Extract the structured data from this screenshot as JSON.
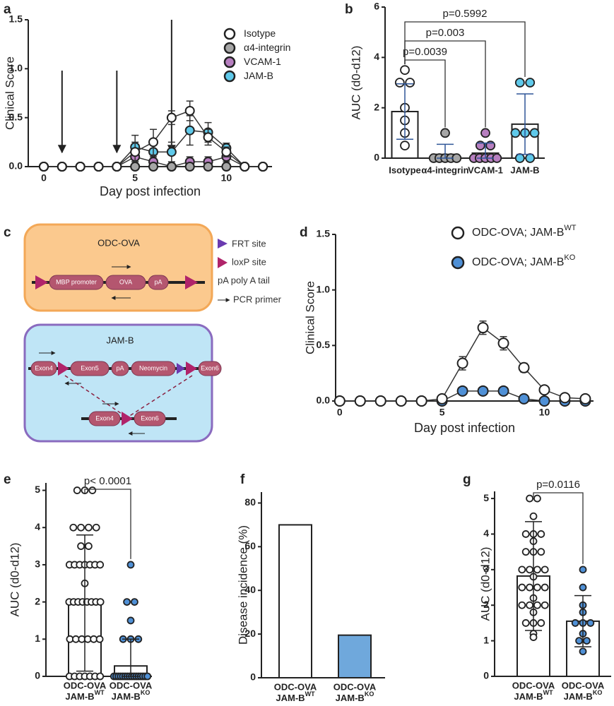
{
  "chart_data": [
    {
      "panel_label": "a",
      "type": "line",
      "ylabel": "Clinical Score",
      "xlabel": "Day post infection",
      "x": [
        0,
        1,
        2,
        3,
        4,
        5,
        6,
        7,
        8,
        9,
        10,
        11,
        12
      ],
      "xlim": [
        -0.85,
        12.5
      ],
      "xticks": [
        0,
        5,
        10
      ],
      "ylim": [
        0,
        1.5
      ],
      "yticks": [
        {
          "value": 0,
          "label": "0.0"
        },
        0.5,
        {
          "value": 1,
          "label": "1.0"
        },
        1.5
      ],
      "legend": "upper right",
      "treatment_days": [
        1,
        4,
        7
      ],
      "series": [
        {
          "name": "Isotype",
          "color": "#ffffff",
          "values": [
            0,
            0,
            0,
            0,
            0,
            0.15,
            0.25,
            0.5,
            0.57,
            0.3,
            0.15,
            0,
            0
          ],
          "errors": [
            0,
            0,
            0,
            0,
            0,
            0.1,
            0.13,
            0.07,
            0.1,
            0.08,
            0.05,
            0,
            0
          ]
        },
        {
          "name": "α4-integrin",
          "color": "#a6a6a6",
          "values": [
            0,
            0,
            0,
            0,
            0,
            0,
            0,
            0,
            0,
            0,
            0,
            0,
            0
          ],
          "errors": [
            0,
            0,
            0,
            0,
            0,
            0,
            0,
            0,
            0,
            0,
            0,
            0,
            0
          ]
        },
        {
          "name": "VCAM-1",
          "color": "#b77fc0",
          "values": [
            0,
            0,
            0,
            0,
            0,
            0.1,
            0.05,
            0,
            0.05,
            0.05,
            0.1,
            0,
            0
          ],
          "errors": [
            0,
            0,
            0,
            0,
            0,
            0.05,
            0.05,
            0,
            0.05,
            0.05,
            0.05,
            0,
            0
          ]
        },
        {
          "name": "JAM-B",
          "color": "#5fc9ea",
          "values": [
            0,
            0,
            0,
            0,
            0,
            0.2,
            0.15,
            0.15,
            0.37,
            0.35,
            0.19,
            0,
            0
          ],
          "errors": [
            0,
            0,
            0,
            0,
            0,
            0.12,
            0.1,
            0.1,
            0.15,
            0.1,
            0.05,
            0,
            0
          ]
        }
      ]
    },
    {
      "panel_label": "b",
      "type": "bar",
      "ylabel": "AUC (d0-d12)",
      "categories": [
        "Isotype",
        "α4-integrin",
        "VCAM-1",
        "JAM-B"
      ],
      "values": [
        1.85,
        0.15,
        0.2,
        1.35
      ],
      "errors": [
        1.1,
        0.4,
        0.4,
        1.2
      ],
      "error_color": "#2e5597",
      "bar_colors": [
        "#ffffff",
        "#ffffff",
        "#ffffff",
        "#ffffff"
      ],
      "point_colors": [
        "#ffffff",
        "#a6a6a6",
        "#b77fc0",
        "#5fc9ea"
      ],
      "points": [
        [
          3.5,
          3,
          3,
          2,
          1.5,
          1,
          0.5
        ],
        [
          1,
          0,
          0,
          0,
          0,
          0
        ],
        [
          1,
          0.5,
          0.5,
          0,
          0,
          0,
          0,
          0
        ],
        [
          3,
          3,
          1,
          1,
          1,
          0,
          0
        ]
      ],
      "ylim": [
        0,
        6
      ],
      "yticks": [
        0,
        2,
        4,
        6
      ],
      "comparisons": [
        {
          "from": 0,
          "to": 1,
          "label": "p=0.0039"
        },
        {
          "from": 0,
          "to": 2,
          "label": "p=0.003"
        },
        {
          "from": 0,
          "to": 3,
          "label": "p=0.5992"
        }
      ]
    },
    {
      "panel_label": "d",
      "type": "line",
      "ylabel": "Clinical Score",
      "xlabel": "Day post infection",
      "x": [
        0,
        1,
        2,
        3,
        4,
        5,
        6,
        7,
        8,
        9,
        10,
        11,
        12
      ],
      "xlim": [
        -0.2,
        12.4
      ],
      "xticks": [
        0,
        5,
        10
      ],
      "ylim": [
        0,
        1.5
      ],
      "yticks": [
        {
          "value": 0,
          "label": "0.0"
        },
        0.5,
        {
          "value": 1,
          "label": "1.0"
        },
        1.5
      ],
      "legend": "upper right",
      "series": [
        {
          "name": "ODC-OVA; JAM-B",
          "name_sup": "WT",
          "color": "#ffffff",
          "values": [
            0,
            0,
            0,
            0,
            0,
            0.02,
            0.34,
            0.66,
            0.52,
            0.3,
            0.1,
            0.03,
            0.02
          ],
          "errors": [
            0,
            0,
            0,
            0,
            0,
            0,
            0.06,
            0.06,
            0.06,
            0.04,
            0.02,
            0.01,
            0.01
          ]
        },
        {
          "name": "ODC-OVA; JAM-B",
          "name_sup": "KO",
          "color": "#4f90d6",
          "values": [
            0,
            0,
            0,
            0,
            0,
            0,
            0.09,
            0.09,
            0.09,
            0.02,
            0,
            0,
            0
          ],
          "errors": [
            0,
            0,
            0,
            0,
            0,
            0,
            0,
            0,
            0,
            0,
            0,
            0,
            0
          ]
        }
      ]
    },
    {
      "panel_label": "e",
      "type": "bar",
      "ylabel": "AUC (d0-d12)",
      "categories": [
        "ODC-OVA",
        "ODC-OVA"
      ],
      "category_lines": [
        "JAM-B",
        "JAM-B"
      ],
      "category_sups": [
        "WT",
        "KO"
      ],
      "values": [
        1.97,
        0.28
      ],
      "errors": [
        1.83,
        0.72
      ],
      "error_color": "#222222",
      "bar_colors": [
        "#ffffff",
        "#ffffff"
      ],
      "point_colors": [
        "#ffffff",
        "#4f90d6"
      ],
      "points": [
        [
          5,
          5,
          5,
          4,
          4,
          4,
          4,
          3.5,
          3.5,
          3,
          3,
          3,
          3,
          3,
          3,
          3,
          2.5,
          2,
          2,
          2,
          2,
          2,
          2,
          2,
          2,
          1,
          1,
          1,
          1,
          1,
          1,
          0,
          0,
          0,
          0,
          0,
          0,
          0
        ],
        [
          3,
          2,
          2,
          1.5,
          1,
          1,
          1,
          0,
          0,
          0,
          0,
          0,
          0,
          0,
          0,
          0,
          0,
          0,
          0,
          0,
          0,
          0,
          0
        ]
      ],
      "ylim": [
        0,
        5.2
      ],
      "yticks": [
        0,
        1,
        2,
        3,
        4,
        5
      ],
      "comparisons": [
        {
          "from": 0,
          "to": 1,
          "label": "p< 0.0001"
        }
      ]
    },
    {
      "panel_label": "f",
      "type": "bar",
      "ylabel": "Disease incidence (%)",
      "categories": [
        "ODC-OVA",
        "ODC-OVA"
      ],
      "category_lines": [
        "JAM-B",
        "JAM-B"
      ],
      "category_sups": [
        "WT",
        "KO"
      ],
      "values": [
        70,
        19.5
      ],
      "bar_colors": [
        "#ffffff",
        "#6fa8dc"
      ],
      "ylim": [
        0,
        85
      ],
      "yticks": [
        0,
        20,
        40,
        60,
        80
      ]
    },
    {
      "panel_label": "g",
      "type": "bar",
      "ylabel": "AUC (d0-d12)",
      "categories": [
        "ODC-OVA",
        "ODC-OVA"
      ],
      "category_lines": [
        "JAM-B",
        "JAM-B"
      ],
      "category_sups": [
        "WT",
        "KO"
      ],
      "values": [
        2.82,
        1.55
      ],
      "errors": [
        1.53,
        0.72
      ],
      "error_color": "#222222",
      "bar_colors": [
        "#ffffff",
        "#ffffff"
      ],
      "point_colors": [
        "#ffffff",
        "#4f90d6"
      ],
      "points": [
        [
          5,
          5,
          4.5,
          4,
          4,
          4,
          3.8,
          3.5,
          3.5,
          3.5,
          3,
          3,
          3,
          3,
          2.8,
          2.5,
          2.5,
          2.5,
          2.5,
          2.2,
          2,
          2,
          2,
          2,
          1.8,
          1.5,
          1.5,
          1.5,
          1.2,
          1.1
        ],
        [
          3,
          2.5,
          2,
          1.8,
          1.5,
          1.5,
          1.5,
          1.2,
          1,
          1,
          0.7
        ]
      ],
      "ylim": [
        0,
        5.2
      ],
      "yticks": [
        0,
        1,
        2,
        3,
        4,
        5
      ],
      "comparisons": [
        {
          "from": 0,
          "to": 1,
          "label": "p=0.0116"
        }
      ]
    }
  ],
  "diagram": {
    "panel_label": "c",
    "odc": {
      "title": "ODC-OVA",
      "parts": [
        "MBP promoter",
        "OVA",
        "pA"
      ]
    },
    "jam": {
      "title": "JAM-B",
      "parts": [
        "Exon4",
        "Exon5",
        "pA",
        "Neomycin",
        "Exon6"
      ],
      "recombined": [
        "Exon4",
        "Exon6"
      ]
    },
    "legend": [
      "FRT site",
      "loxP site",
      "pA poly A tail",
      "PCR primer"
    ]
  }
}
